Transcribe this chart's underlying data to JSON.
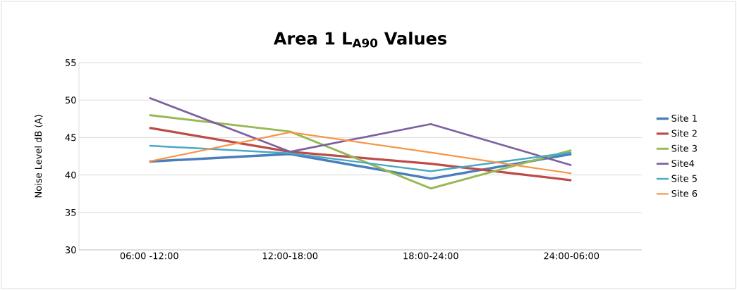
{
  "chart_data": {
    "type": "line",
    "title": "Area 1 L$_{A90}$ Values",
    "ylabel": "Noise Level dB (A)",
    "categories": [
      "06:00 -12:00",
      "12:00-18:00",
      "18:00-24:00",
      "24:00-06:00"
    ],
    "series": [
      {
        "name": "Site 1",
        "color": "#4a7ebb",
        "values": [
          41.8,
          42.8,
          39.5,
          42.8
        ]
      },
      {
        "name": "Site 2",
        "color": "#be4b48",
        "values": [
          46.3,
          43.1,
          41.5,
          39.3
        ]
      },
      {
        "name": "Site 3",
        "color": "#98b954",
        "values": [
          48.0,
          45.8,
          38.2,
          43.3
        ]
      },
      {
        "name": "Site4",
        "color": "#7d60a0",
        "values": [
          50.3,
          43.1,
          46.8,
          41.3
        ]
      },
      {
        "name": "Site 5",
        "color": "#46aac5",
        "values": [
          43.9,
          42.9,
          40.5,
          43.0
        ]
      },
      {
        "name": "Site 6",
        "color": "#f79646",
        "values": [
          41.8,
          45.7,
          43.0,
          40.2
        ]
      }
    ],
    "ylim": [
      30,
      55
    ],
    "yticks": [
      30,
      35,
      40,
      45,
      50,
      55
    ],
    "grid": "y",
    "legend": "right",
    "marker": "none",
    "line_style": "solid"
  }
}
